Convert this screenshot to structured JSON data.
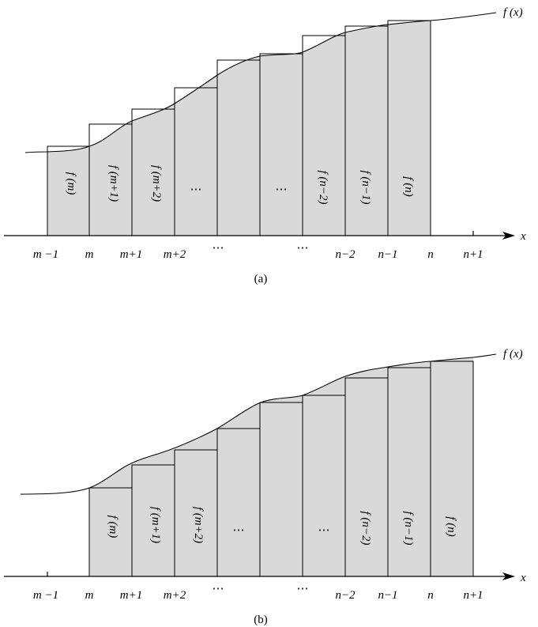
{
  "panels": [
    {
      "id": "a",
      "caption": "(a)",
      "function_label": "f (x)",
      "axis_var": "x",
      "tick_labels": [
        "m −1",
        "m",
        "m+1",
        "m+2",
        "⋯",
        "⋯",
        "n−2",
        "n−1",
        "n",
        "n+1"
      ],
      "box_labels": [
        "f (m)",
        "f (m+1)",
        "f (m+2)",
        "⋯",
        "⋯",
        "f (n−2)",
        "f (n−1)",
        "f (n)"
      ]
    },
    {
      "id": "b",
      "caption": "(b)",
      "function_label": "f (x)",
      "axis_var": "x",
      "tick_labels": [
        "m −1",
        "m",
        "m+1",
        "m+2",
        "⋯",
        "⋯",
        "n−2",
        "n−1",
        "n",
        "n+1"
      ],
      "box_labels": [
        "f (m)",
        "f (m+1)",
        "f (m+2)",
        "⋯",
        "⋯",
        "f (n−2)",
        "f (n−1)",
        "f (n)"
      ]
    }
  ],
  "colors": {
    "shade": "#d9d9d9",
    "ink": "#000000"
  }
}
